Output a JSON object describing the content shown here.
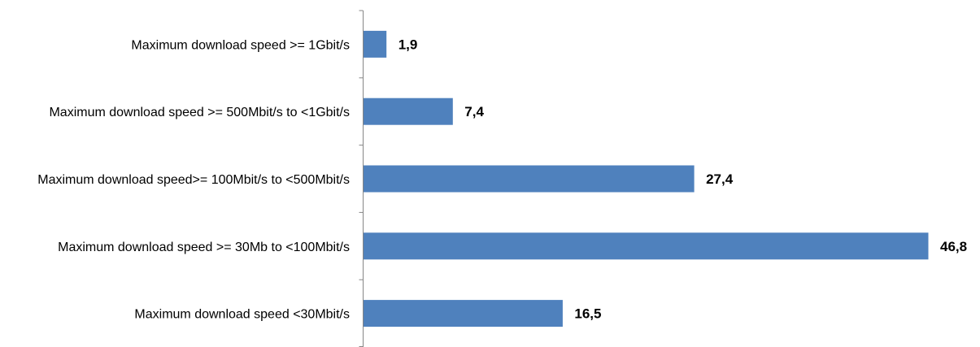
{
  "chart_data": {
    "type": "bar",
    "orientation": "horizontal",
    "categories": [
      "Maximum download speed >= 1Gbit/s",
      "Maximum download speed >= 500Mbit/s to <1Gbit/s",
      "Maximum download speed>= 100Mbit/s to <500Mbit/s",
      "Maximum download speed >= 30Mb to <100Mbit/s",
      "Maximum download speed  <30Mbit/s"
    ],
    "values": [
      1.9,
      7.4,
      27.4,
      46.8,
      16.5
    ],
    "value_labels": [
      "1,9",
      "7,4",
      "27,4",
      "46,8",
      "16,5"
    ],
    "xlim": [
      0,
      47
    ],
    "grid": false,
    "legend": "none",
    "bar_color": "#4F81BD",
    "axis_color": "#868686"
  }
}
